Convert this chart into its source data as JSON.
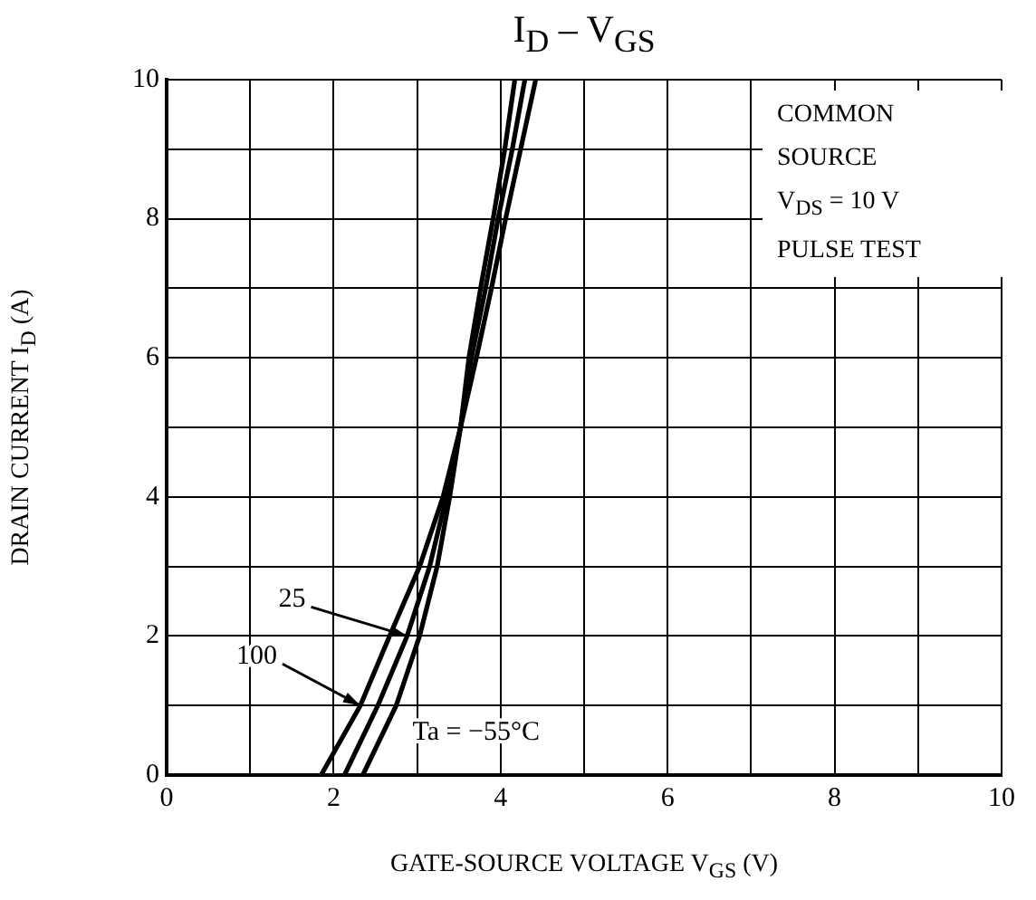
{
  "chart_data": {
    "type": "line",
    "title": "I$_{D}$ – V$_{GS}$",
    "xlabel": "GATE-SOURCE VOLTAGE   V$_{GS}$   (V)",
    "ylabel": "DRAIN CURRENT   I$_{D}$   (A)",
    "annotations": [
      "COMMON\nSOURCE\nV$_{DS}$ = 10 V\nPULSE TEST"
    ],
    "xlim": [
      0,
      10
    ],
    "ylim": [
      0,
      10
    ],
    "xticks": [
      0,
      {
        "value": 1,
        "label": null
      },
      2,
      {
        "value": 3,
        "label": null
      },
      4,
      {
        "value": 5,
        "label": null
      },
      6,
      {
        "value": 7,
        "label": null
      },
      8,
      {
        "value": 9,
        "label": null
      },
      10
    ],
    "yticks": [
      0,
      {
        "value": 1,
        "label": null
      },
      2,
      {
        "value": 3,
        "label": null
      },
      4,
      {
        "value": 5,
        "label": null
      },
      6,
      {
        "value": 7,
        "label": null
      },
      8,
      {
        "value": 9,
        "label": null
      },
      10
    ],
    "grid": true,
    "legend": false,
    "marker": "none",
    "line_style": "solid",
    "series": [
      {
        "name": "100",
        "color": "#000000",
        "x": [
          1.85,
          2.32,
          2.67,
          3.03,
          3.31,
          3.52,
          3.71,
          3.89,
          4.06,
          4.24,
          4.42
        ],
        "values": [
          0,
          1,
          2,
          3,
          4,
          5,
          6,
          7,
          8,
          9,
          10
        ]
      },
      {
        "name": "25",
        "color": "#000000",
        "x": [
          2.13,
          2.53,
          2.88,
          3.15,
          3.35,
          3.52,
          3.65,
          3.82,
          3.97,
          4.14,
          4.29
        ],
        "values": [
          0,
          1,
          2,
          3,
          4,
          5,
          6,
          7,
          8,
          9,
          10
        ]
      },
      {
        "name": "Ta = −55°C",
        "color": "#000000",
        "x": [
          2.35,
          2.75,
          3.03,
          3.24,
          3.39,
          3.52,
          3.62,
          3.76,
          3.91,
          4.05,
          4.17
        ],
        "values": [
          0,
          1,
          2,
          3,
          4,
          5,
          6,
          7,
          8,
          9,
          10
        ]
      }
    ]
  }
}
